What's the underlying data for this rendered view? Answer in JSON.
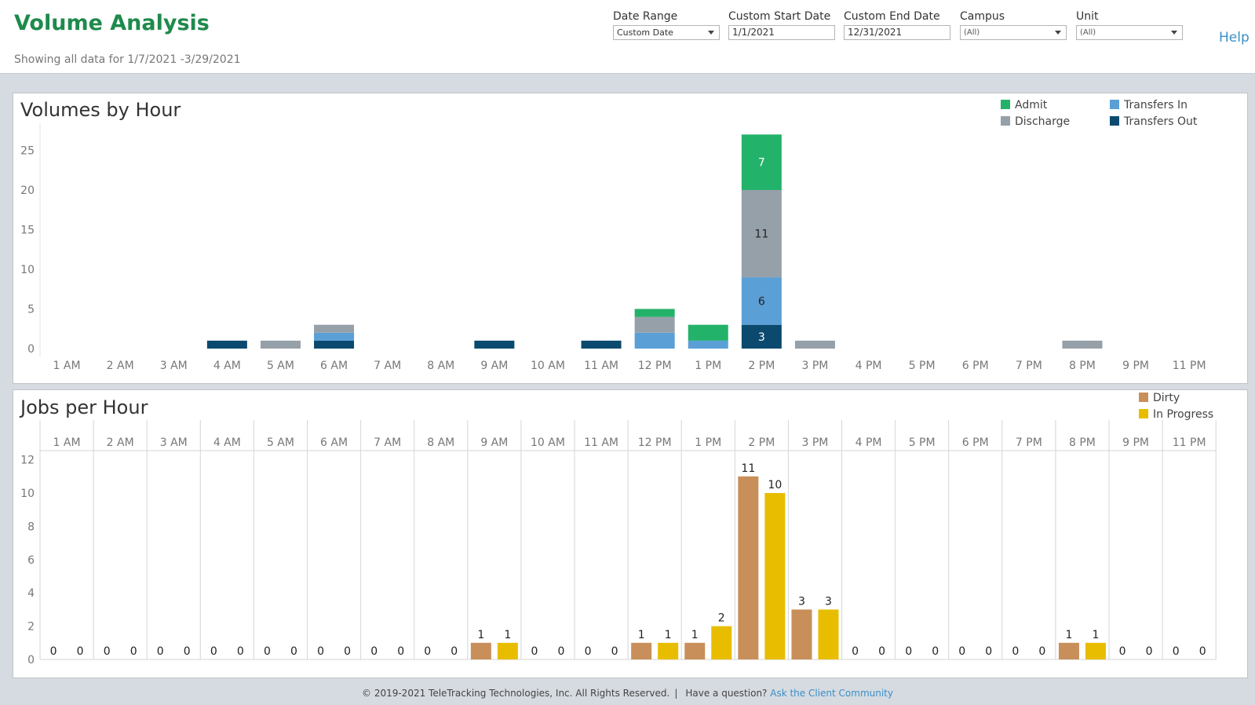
{
  "header": {
    "title": "Volume Analysis",
    "subtitle": "Showing all data for 1/7/2021 -3/29/2021",
    "help_label": "Help"
  },
  "filters": {
    "date_range": {
      "label": "Date Range",
      "value": "Custom Date"
    },
    "start_date": {
      "label": "Custom Start Date",
      "value": "1/1/2021"
    },
    "end_date": {
      "label": "Custom End Date",
      "value": "12/31/2021"
    },
    "campus": {
      "label": "Campus",
      "value": "(All)"
    },
    "unit": {
      "label": "Unit",
      "value": "(All)"
    }
  },
  "chart_data": [
    {
      "type": "bar",
      "stacked": true,
      "title": "Volumes by Hour",
      "xlabel": "",
      "ylabel": "",
      "ylim": [
        0,
        27
      ],
      "yticks": [
        0,
        5,
        10,
        15,
        20,
        25
      ],
      "grid": false,
      "legend_position": "top-right",
      "categories": [
        "1 AM",
        "2 AM",
        "3 AM",
        "4 AM",
        "5 AM",
        "6 AM",
        "7 AM",
        "8 AM",
        "9 AM",
        "10 AM",
        "11 AM",
        "12 PM",
        "1 PM",
        "2 PM",
        "3 PM",
        "4 PM",
        "5 PM",
        "6 PM",
        "7 PM",
        "8 PM",
        "9 PM",
        "11 PM"
      ],
      "series": [
        {
          "name": "Transfers Out",
          "color": "#0b4a6e",
          "values": [
            0,
            0,
            0,
            1,
            0,
            1,
            0,
            0,
            1,
            0,
            1,
            0,
            0,
            3,
            0,
            0,
            0,
            0,
            0,
            0,
            0,
            0
          ]
        },
        {
          "name": "Transfers In",
          "color": "#5a9fd6",
          "values": [
            0,
            0,
            0,
            0,
            0,
            1,
            0,
            0,
            0,
            0,
            0,
            2,
            1,
            6,
            0,
            0,
            0,
            0,
            0,
            0,
            0,
            0
          ]
        },
        {
          "name": "Discharge",
          "color": "#96a0a9",
          "values": [
            0,
            0,
            0,
            0,
            1,
            1,
            0,
            0,
            0,
            0,
            0,
            2,
            0,
            11,
            1,
            0,
            0,
            0,
            0,
            1,
            0,
            0
          ]
        },
        {
          "name": "Admit",
          "color": "#23b26a",
          "values": [
            0,
            0,
            0,
            0,
            0,
            0,
            0,
            0,
            0,
            0,
            0,
            1,
            2,
            7,
            0,
            0,
            0,
            0,
            0,
            0,
            0,
            0
          ]
        }
      ],
      "legend_order": [
        "Admit",
        "Transfers In",
        "Discharge",
        "Transfers Out"
      ]
    },
    {
      "type": "bar",
      "title": "Jobs per Hour",
      "xlabel": "",
      "ylabel": "",
      "ylim": [
        0,
        12
      ],
      "yticks": [
        0,
        2,
        4,
        6,
        8,
        10,
        12
      ],
      "grid": true,
      "legend_position": "top-right",
      "categories": [
        "1 AM",
        "2 AM",
        "3 AM",
        "4 AM",
        "5 AM",
        "6 AM",
        "7 AM",
        "8 AM",
        "9 AM",
        "10 AM",
        "11 AM",
        "12 PM",
        "1 PM",
        "2 PM",
        "3 PM",
        "4 PM",
        "5 PM",
        "6 PM",
        "7 PM",
        "8 PM",
        "9 PM",
        "11 PM"
      ],
      "series": [
        {
          "name": "Dirty",
          "color": "#c98f5a",
          "values": [
            0,
            0,
            0,
            0,
            0,
            0,
            0,
            0,
            1,
            0,
            0,
            1,
            1,
            11,
            3,
            0,
            0,
            0,
            0,
            1,
            0,
            0
          ]
        },
        {
          "name": "In Progress",
          "color": "#e8bd00",
          "values": [
            0,
            0,
            0,
            0,
            0,
            0,
            0,
            0,
            1,
            0,
            0,
            1,
            2,
            10,
            3,
            0,
            0,
            0,
            0,
            1,
            0,
            0
          ]
        }
      ]
    }
  ],
  "footer": {
    "copyright": "© 2019-2021 TeleTracking Technologies, Inc.  All Rights Reserved.",
    "separator": "|",
    "question": "Have a question?",
    "link_label": "Ask the Client Community"
  }
}
